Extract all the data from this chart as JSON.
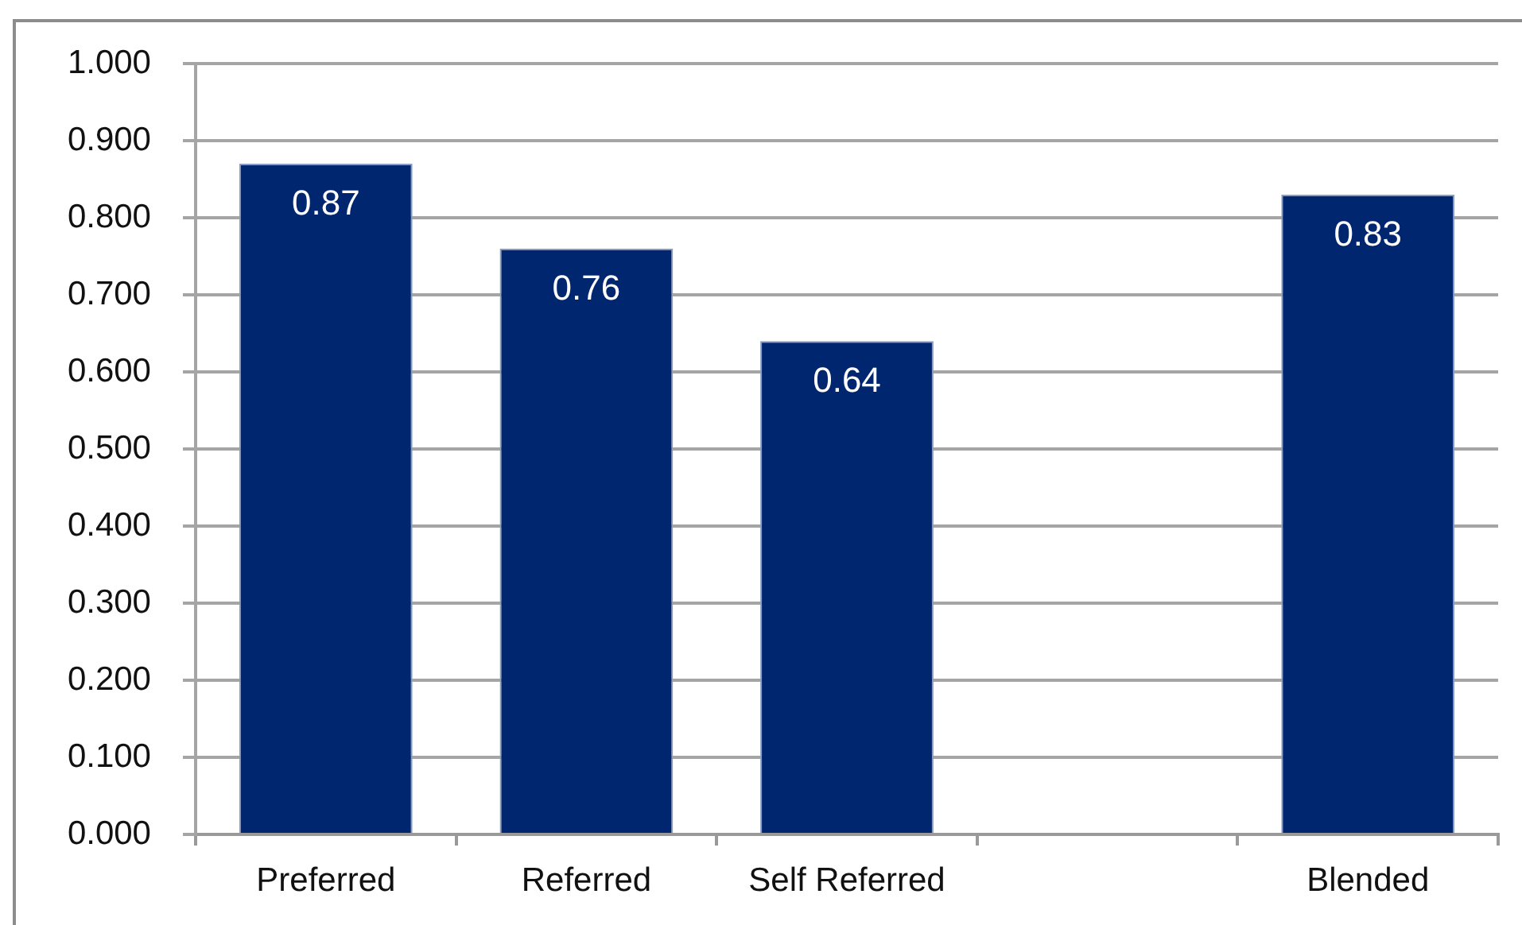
{
  "chart_data": {
    "type": "bar",
    "categories": [
      "Preferred",
      "Referred",
      "Self Referred",
      null,
      "Blended"
    ],
    "values": [
      0.87,
      0.76,
      0.64,
      null,
      0.83
    ],
    "color": "#00266f",
    "ylim": [
      0,
      1
    ],
    "yticks": [
      {
        "value": 0,
        "label": "0.000"
      },
      {
        "value": 0.1,
        "label": "0.100"
      },
      {
        "value": 0.2,
        "label": "0.200"
      },
      {
        "value": 0.3,
        "label": "0.300"
      },
      {
        "value": 0.4,
        "label": "0.400"
      },
      {
        "value": 0.5,
        "label": "0.500"
      },
      {
        "value": 0.6,
        "label": "0.600"
      },
      {
        "value": 0.7,
        "label": "0.700"
      },
      {
        "value": 0.8,
        "label": "0.800"
      },
      {
        "value": 0.9,
        "label": "0.900"
      },
      {
        "value": 1,
        "label": "1.000"
      }
    ],
    "grid": "y",
    "data_labels": true
  }
}
